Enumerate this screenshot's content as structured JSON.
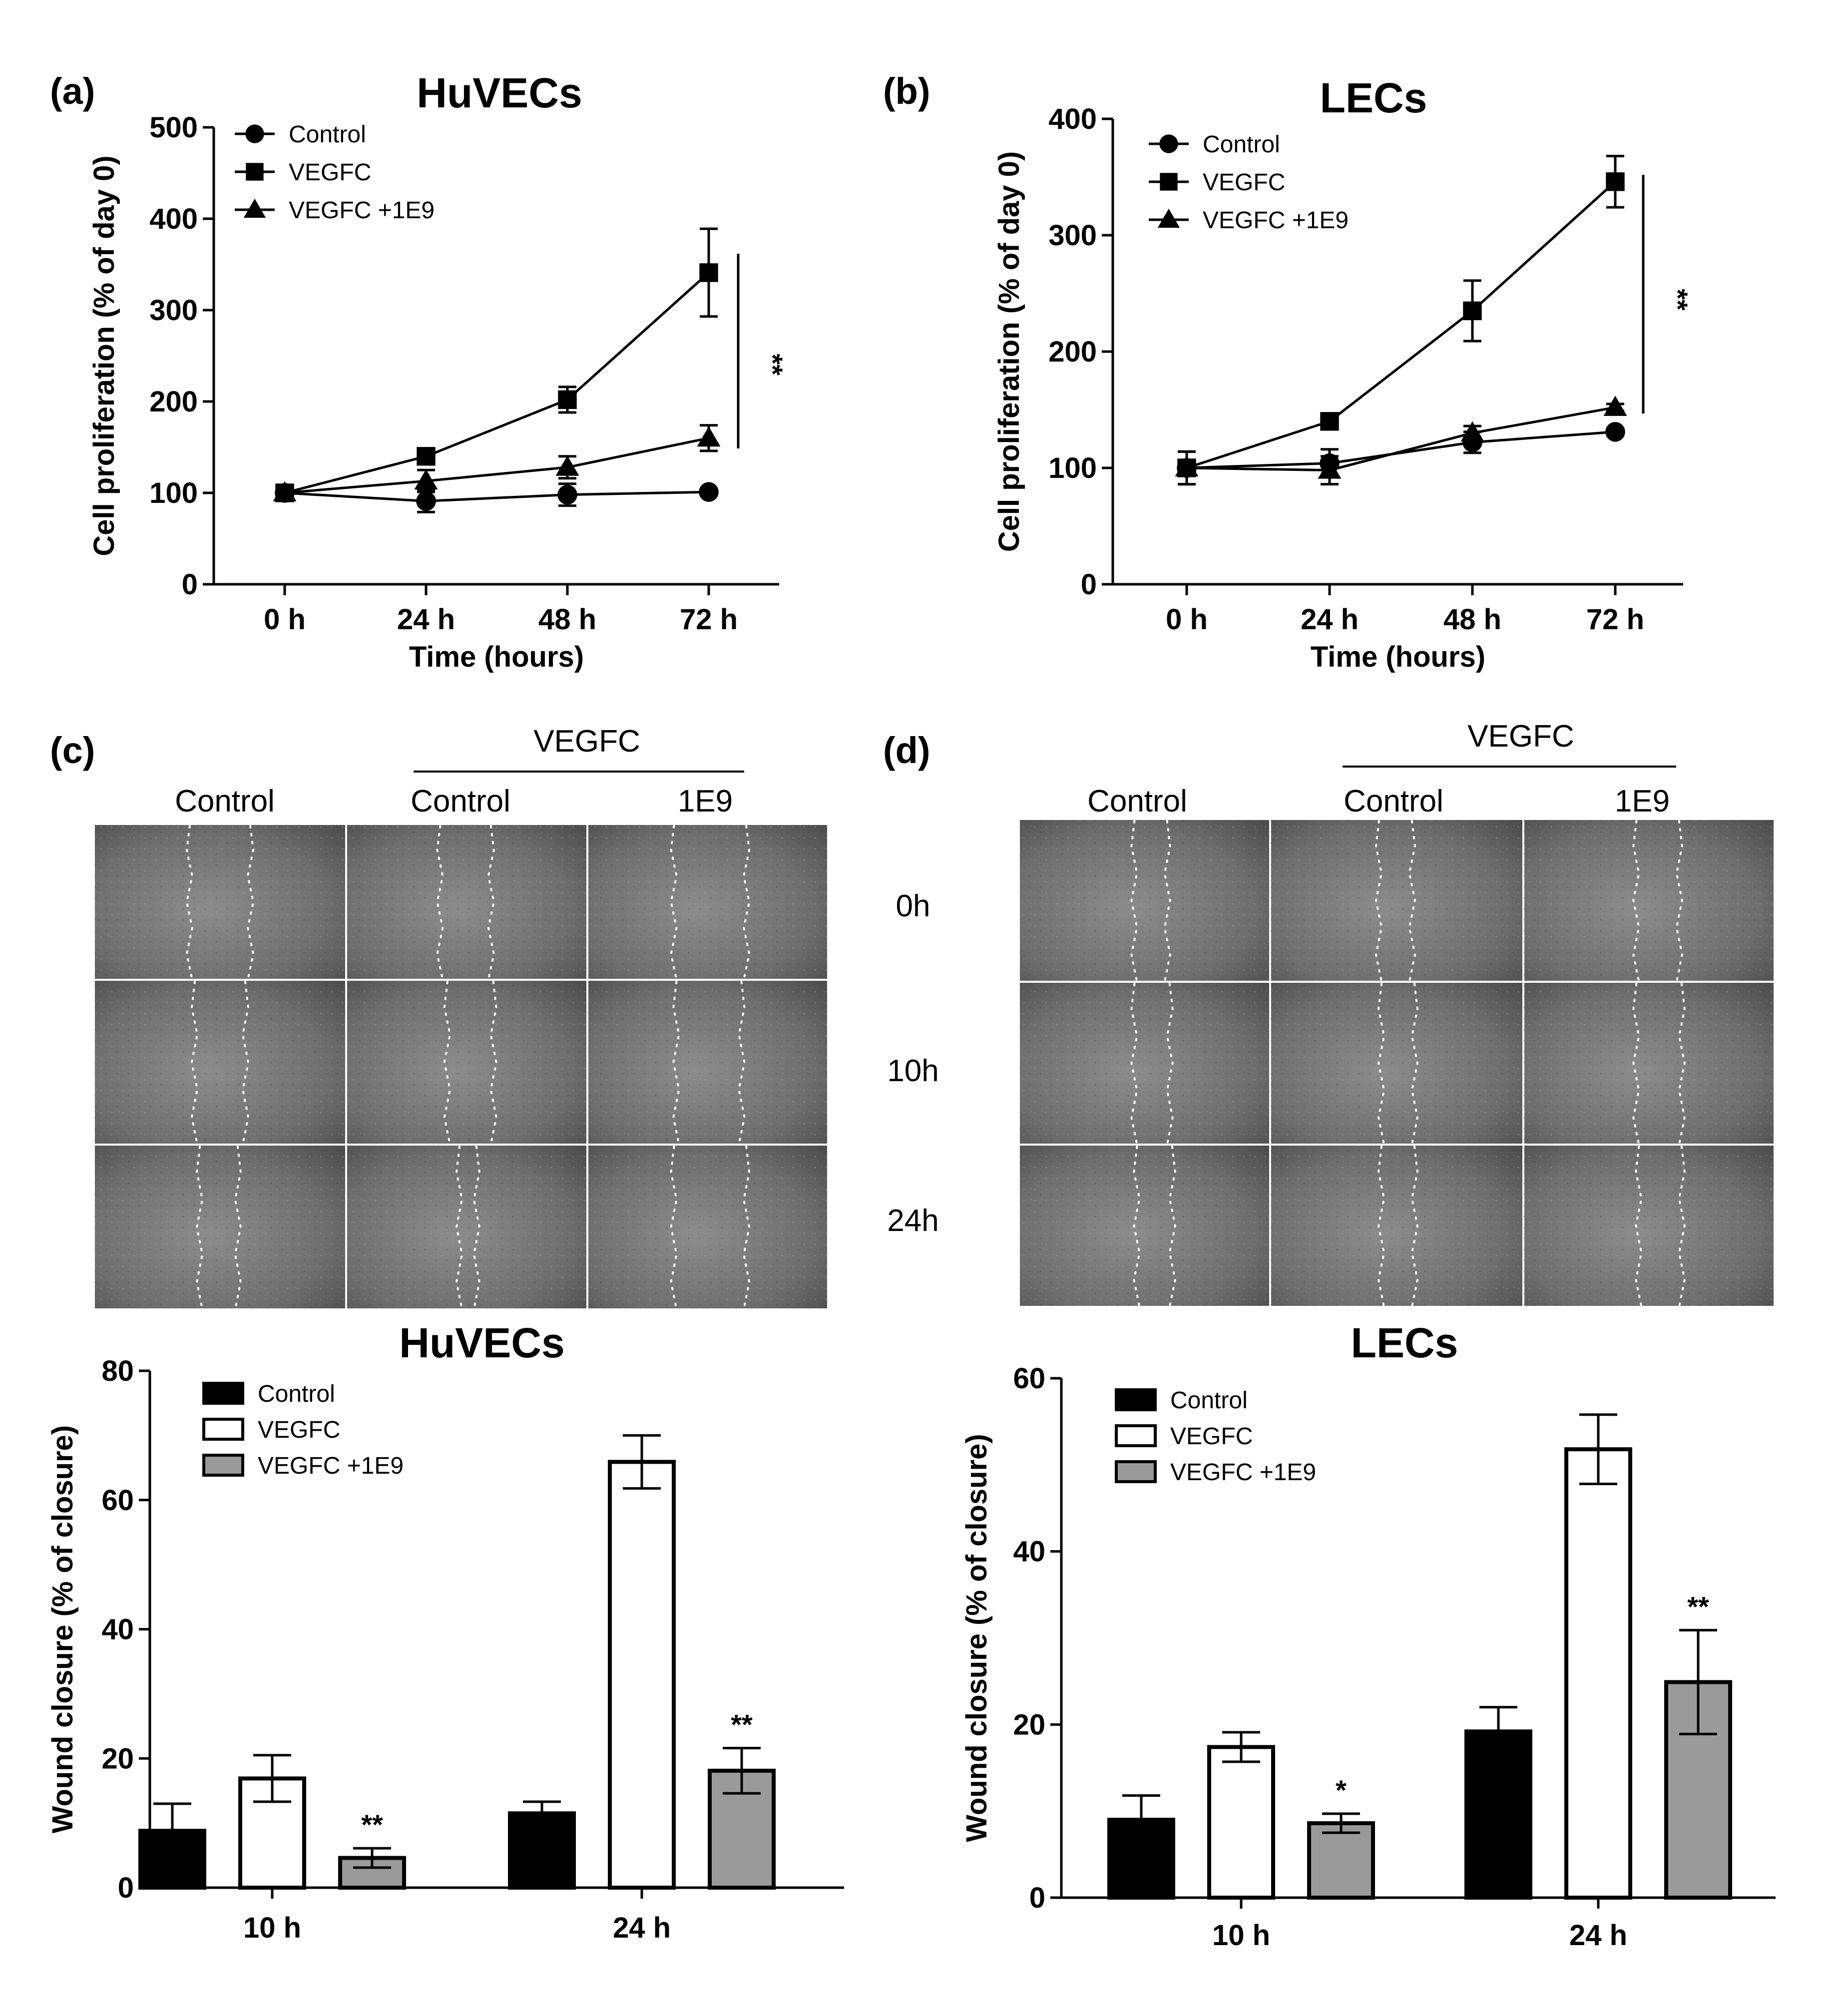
{
  "panels": {
    "a": {
      "label": "(a)"
    },
    "b": {
      "label": "(b)"
    },
    "c": {
      "label": "(c)",
      "group_label": "VEGFC",
      "col_labels": [
        "Control",
        "Control",
        "1E9"
      ]
    },
    "d": {
      "label": "(d)",
      "group_label": "VEGFC",
      "col_labels": [
        "Control",
        "Control",
        "1E9"
      ],
      "row_labels": [
        "0h",
        "10h",
        "24h"
      ]
    }
  },
  "chart_data": [
    {
      "id": "a",
      "type": "line",
      "title": "HuVECs",
      "xlabel": "Time (hours)",
      "ylabel": "Cell proliferation (% of day 0)",
      "categories": [
        "0 h",
        "24 h",
        "48 h",
        "72 h"
      ],
      "ylim": [
        0,
        500
      ],
      "yticks": [
        0,
        100,
        200,
        300,
        400,
        500
      ],
      "legend_position": "top-left",
      "series": [
        {
          "name": "Control",
          "marker": "circle",
          "values": [
            100,
            91,
            98,
            101
          ],
          "errors": [
            4,
            12,
            12,
            3
          ]
        },
        {
          "name": "VEGFC",
          "marker": "square",
          "values": [
            100,
            140,
            202,
            341
          ],
          "errors": [
            4,
            5,
            14,
            48
          ]
        },
        {
          "name": "VEGFC +1E9",
          "marker": "triangle",
          "values": [
            100,
            113,
            128,
            160
          ],
          "errors": [
            4,
            12,
            12,
            14
          ]
        }
      ],
      "significance": "**"
    },
    {
      "id": "b",
      "type": "line",
      "title": "LECs",
      "xlabel": "Time (hours)",
      "ylabel": "Cell proliferation (% of day 0)",
      "categories": [
        "0 h",
        "24 h",
        "48 h",
        "72 h"
      ],
      "ylim": [
        0,
        400
      ],
      "yticks": [
        0,
        100,
        200,
        300,
        400
      ],
      "legend_position": "top-left",
      "series": [
        {
          "name": "Control",
          "marker": "circle",
          "values": [
            100,
            104,
            122,
            131
          ],
          "errors": [
            14,
            12,
            9,
            3
          ]
        },
        {
          "name": "VEGFC",
          "marker": "square",
          "values": [
            100,
            140,
            235,
            346
          ],
          "errors": [
            14,
            4,
            26,
            22
          ]
        },
        {
          "name": "VEGFC +1E9",
          "marker": "triangle",
          "values": [
            100,
            98,
            130,
            152
          ],
          "errors": [
            14,
            12,
            6,
            3
          ]
        }
      ],
      "significance": "**"
    },
    {
      "id": "c_bar",
      "type": "bar",
      "title": "HuVECs",
      "xlabel": "",
      "ylabel": "Wound closure (% of closure)",
      "categories": [
        "10 h",
        "24 h"
      ],
      "ylim": [
        0,
        80
      ],
      "yticks": [
        0,
        20,
        40,
        60,
        80
      ],
      "legend_position": "top-left",
      "series": [
        {
          "name": "Control",
          "fill": "#000000",
          "values": [
            8.8,
            11.5
          ],
          "errors": [
            4.2,
            1.8
          ],
          "sig": [
            "",
            ""
          ]
        },
        {
          "name": "VEGFC",
          "fill": "#ffffff",
          "values": [
            16.9,
            65.9
          ],
          "errors": [
            3.6,
            4.1
          ],
          "sig": [
            "",
            ""
          ]
        },
        {
          "name": "VEGFC +1E9",
          "fill": "#9a9a9a",
          "values": [
            4.6,
            18.1
          ],
          "errors": [
            1.5,
            3.5
          ],
          "sig": [
            "**",
            "**"
          ]
        }
      ]
    },
    {
      "id": "d_bar",
      "type": "bar",
      "title": "LECs",
      "xlabel": "",
      "ylabel": "Wound closure (% of closure)",
      "categories": [
        "10 h",
        "24 h"
      ],
      "ylim": [
        0,
        60
      ],
      "yticks": [
        0,
        20,
        40,
        60
      ],
      "legend_position": "top-left",
      "series": [
        {
          "name": "Control",
          "fill": "#000000",
          "values": [
            9.0,
            19.2
          ],
          "errors": [
            2.8,
            2.8
          ],
          "sig": [
            "",
            ""
          ]
        },
        {
          "name": "VEGFC",
          "fill": "#ffffff",
          "values": [
            17.4,
            51.8
          ],
          "errors": [
            1.7,
            4.0
          ],
          "sig": [
            "",
            ""
          ]
        },
        {
          "name": "VEGFC +1E9",
          "fill": "#9a9a9a",
          "values": [
            8.6,
            24.9
          ],
          "errors": [
            1.1,
            6.0
          ],
          "sig": [
            "*",
            "**"
          ]
        }
      ]
    }
  ]
}
